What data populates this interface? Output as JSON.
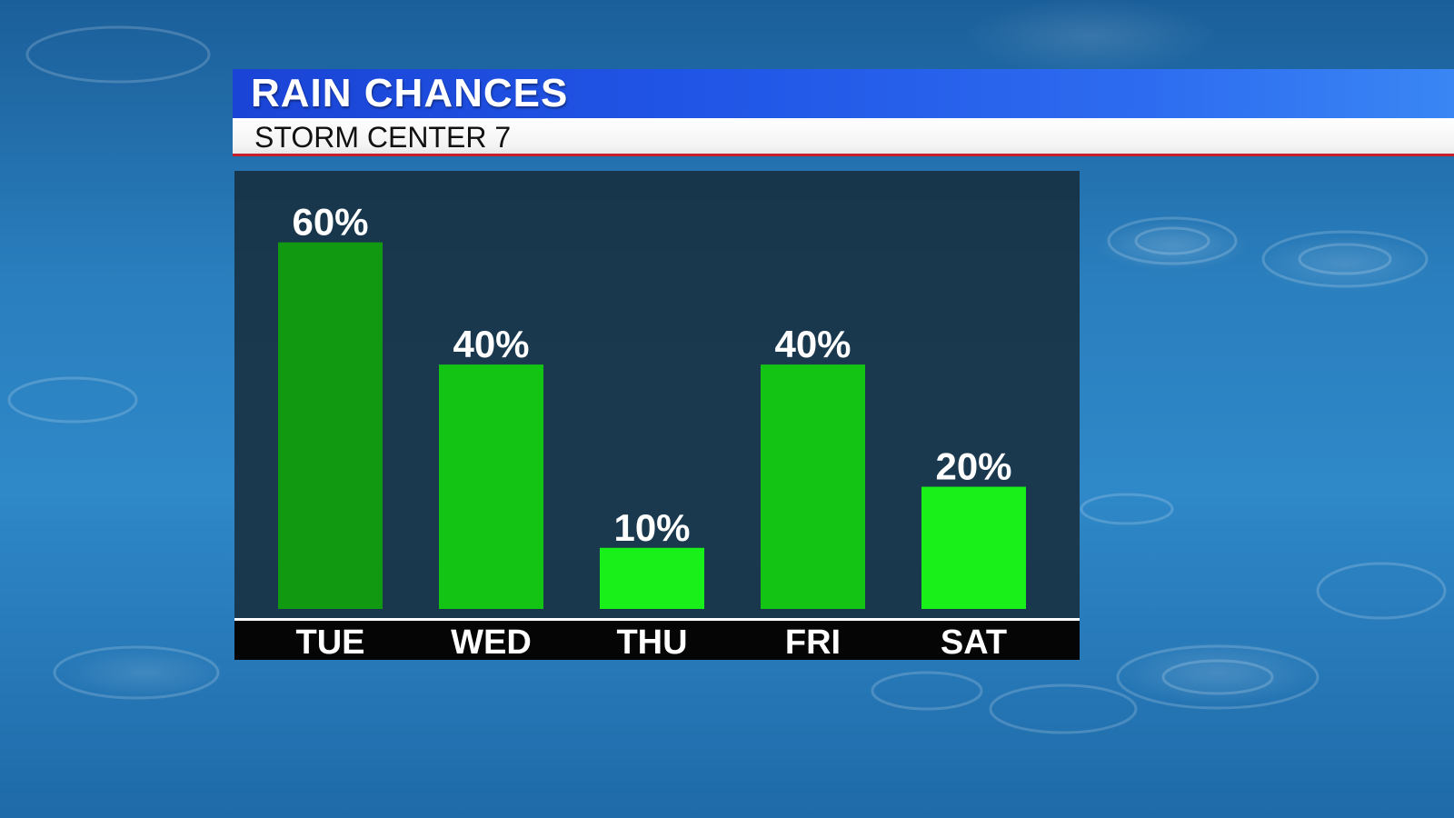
{
  "header": {
    "title": "RAIN CHANCES",
    "subtitle": "STORM CENTER 7"
  },
  "colors": {
    "bar_dark": "#119a11",
    "bar_mid": "#14c414",
    "bar_light": "#19f019"
  },
  "chart_data": {
    "type": "bar",
    "categories": [
      "TUE",
      "WED",
      "THU",
      "FRI",
      "SAT"
    ],
    "values": [
      60,
      40,
      10,
      40,
      20
    ],
    "data_labels": [
      "60%",
      "40%",
      "10%",
      "40%",
      "20%"
    ],
    "ylim": [
      0,
      60
    ],
    "grid": false,
    "legend": "none",
    "title": "RAIN CHANCES",
    "subtitle": "STORM CENTER 7",
    "xlabel": "",
    "ylabel": ""
  }
}
